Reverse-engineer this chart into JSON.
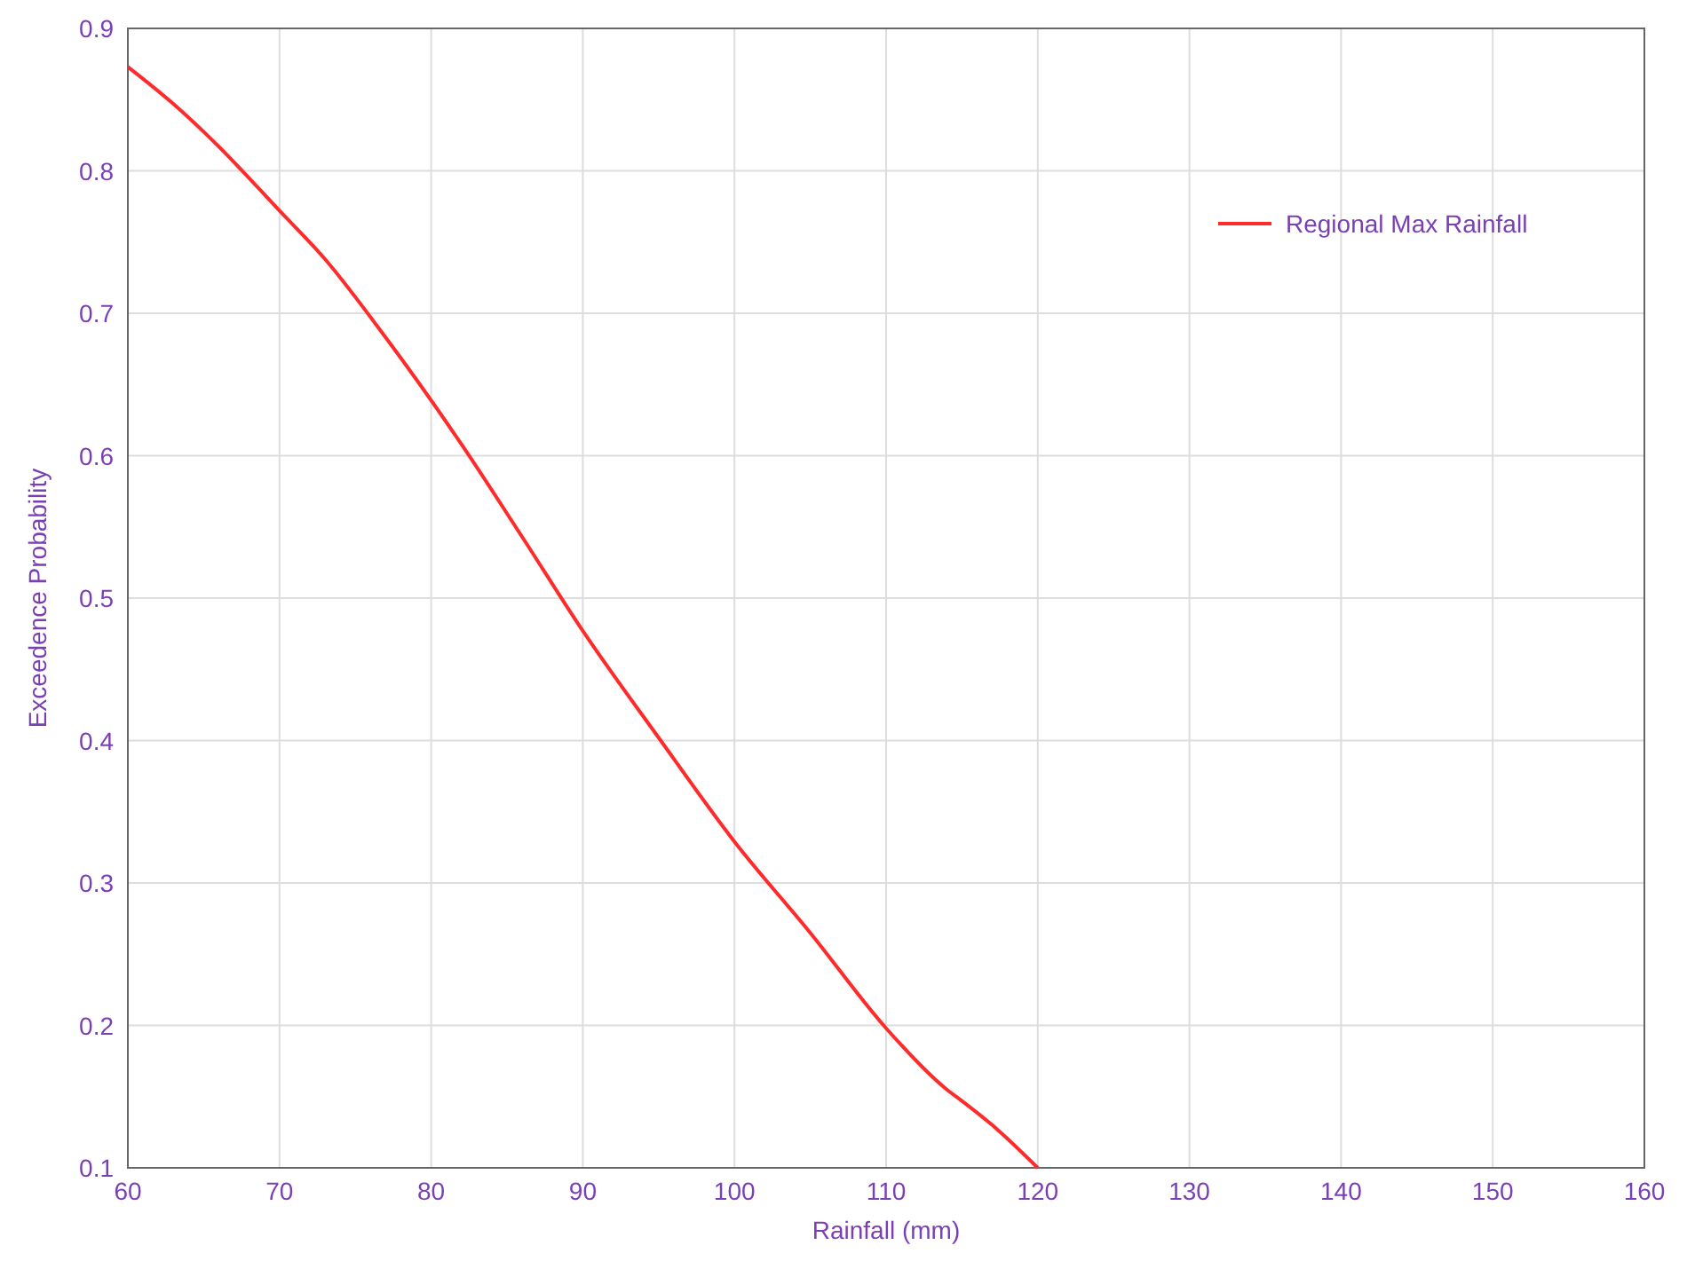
{
  "chart_data": {
    "type": "line",
    "xlabel": "Rainfall (mm)",
    "ylabel": "Exceedence Probability",
    "x": [
      60,
      63,
      66,
      70,
      73,
      77,
      82,
      86,
      90,
      95,
      100,
      105,
      110,
      114,
      115,
      117,
      120
    ],
    "series": [
      {
        "name": "Regional Max Rainfall",
        "color": "#ff2a2a",
        "values": [
          0.873,
          0.847,
          0.817,
          0.772,
          0.738,
          0.683,
          0.608,
          0.543,
          0.477,
          0.402,
          0.329,
          0.265,
          0.198,
          0.155,
          0.147,
          0.13,
          0.1
        ]
      }
    ],
    "xlim": [
      60,
      160
    ],
    "xticks": [
      60,
      70,
      80,
      90,
      100,
      110,
      120,
      130,
      140,
      150,
      160
    ],
    "ylim": [
      0.1,
      0.9
    ],
    "yticks": [
      0.1,
      0.2,
      0.3,
      0.4,
      0.5,
      0.6,
      0.7,
      0.8,
      0.9
    ],
    "grid": true,
    "legend": "top right",
    "marker": "none",
    "line_style": "solid"
  }
}
